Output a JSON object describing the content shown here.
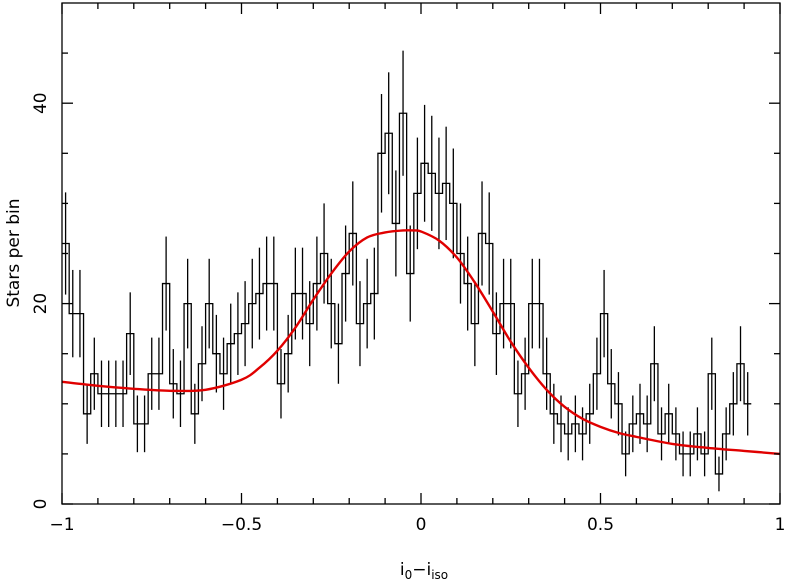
{
  "chart_data": {
    "type": "line",
    "title": "",
    "xlabel": "i",
    "xlabel_sub1": "0",
    "xlabel_mid": "−i",
    "xlabel_sub2": "iso",
    "ylabel": "Stars per bin",
    "xlim": [
      -1,
      1
    ],
    "ylim": [
      0,
      50
    ],
    "x_ticks": [
      -1,
      -0.5,
      0,
      0.5,
      1
    ],
    "x_tick_labels": [
      "−1",
      "−0.5",
      "0",
      "0.5",
      "1"
    ],
    "y_ticks": [
      0,
      20,
      40
    ],
    "y_tick_labels": [
      "0",
      "20",
      "40"
    ],
    "grid": false,
    "series": [
      {
        "style": "histogram-steps-with-poisson-errorbars",
        "color": "#000000",
        "bin_width": 0.02,
        "x_start": -1.0,
        "values": [
          26,
          19,
          19,
          9,
          13,
          11,
          11,
          11,
          11,
          17,
          8,
          8,
          13,
          13,
          22,
          12,
          11,
          20,
          9,
          14,
          20,
          15,
          13,
          16,
          17,
          18,
          20,
          21,
          22,
          22,
          12,
          15,
          21,
          21,
          18,
          22,
          25,
          20,
          16,
          23,
          27,
          18,
          20,
          21,
          35,
          37,
          28,
          39,
          23,
          31,
          34,
          33,
          31,
          32,
          30,
          25,
          22,
          18,
          27,
          26,
          17,
          20,
          20,
          11,
          13,
          20,
          20,
          13,
          9,
          8,
          7,
          8,
          7,
          9,
          13,
          19,
          12,
          10,
          5,
          8,
          9,
          8,
          14,
          7,
          9,
          7,
          5,
          5,
          7,
          5,
          13,
          3,
          7,
          10,
          14,
          10
        ]
      },
      {
        "style": "fit-curve",
        "color": "#e00000",
        "x": [
          -1.0,
          -0.9,
          -0.8,
          -0.7,
          -0.6,
          -0.5,
          -0.45,
          -0.4,
          -0.35,
          -0.3,
          -0.25,
          -0.2,
          -0.15,
          -0.1,
          -0.05,
          -0.02,
          0.0,
          0.05,
          0.1,
          0.15,
          0.2,
          0.25,
          0.3,
          0.35,
          0.4,
          0.45,
          0.5,
          0.55,
          0.6,
          0.7,
          0.8,
          0.9,
          1.0
        ],
        "y": [
          12.2,
          11.8,
          11.5,
          11.3,
          11.4,
          12.4,
          13.6,
          15.3,
          17.6,
          20.4,
          23.0,
          25.2,
          26.6,
          27.1,
          27.3,
          27.3,
          27.2,
          26.3,
          24.6,
          22.1,
          19.2,
          16.2,
          13.6,
          11.4,
          9.7,
          8.5,
          7.7,
          7.1,
          6.7,
          6.0,
          5.6,
          5.3,
          5.0
        ]
      }
    ]
  }
}
